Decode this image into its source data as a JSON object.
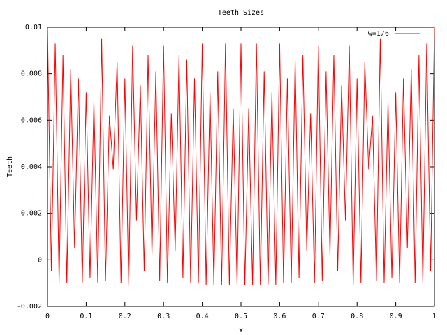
{
  "chart_data": {
    "type": "line",
    "title": "Teeth Sizes",
    "x_label": "x",
    "y_label": "Teeth",
    "x": [
      0,
      0.01,
      0.02,
      0.03,
      0.04,
      0.05,
      0.06,
      0.07,
      0.08,
      0.09,
      0.1,
      0.11,
      0.12,
      0.13,
      0.14,
      0.15,
      0.16,
      0.17,
      0.18,
      0.19,
      0.2,
      0.21,
      0.22,
      0.23,
      0.24,
      0.25,
      0.26,
      0.27,
      0.28,
      0.29,
      0.3,
      0.31,
      0.32,
      0.33,
      0.34,
      0.35,
      0.36,
      0.37,
      0.38,
      0.39,
      0.4,
      0.41,
      0.42,
      0.43,
      0.44,
      0.45,
      0.46,
      0.47,
      0.48,
      0.49,
      0.5,
      0.51,
      0.52,
      0.53,
      0.54,
      0.55,
      0.56,
      0.57,
      0.58,
      0.59,
      0.6,
      0.61,
      0.62,
      0.63,
      0.64,
      0.65,
      0.66,
      0.67,
      0.68,
      0.69,
      0.7,
      0.71,
      0.72,
      0.73,
      0.74,
      0.75,
      0.76,
      0.77,
      0.78,
      0.79,
      0.8,
      0.81,
      0.82,
      0.83,
      0.84,
      0.85,
      0.86,
      0.87,
      0.88,
      0.89,
      0.9,
      0.91,
      0.92,
      0.93,
      0.94,
      0.95,
      0.96,
      0.97,
      0.98,
      0.99,
      1
    ],
    "series": [
      {
        "name": "w=1/6",
        "color": "#ff0000",
        "values": [
          0.01,
          -0.0005,
          0.0093,
          -0.001,
          0.0088,
          -0.001,
          0.0082,
          0.0005,
          0.0078,
          -0.001,
          0.0072,
          -0.0008,
          0.0068,
          -0.001,
          0.0095,
          -0.0009,
          0.0062,
          0.0039,
          0.0085,
          -0.001,
          0.0078,
          -0.0011,
          0.0092,
          0.0017,
          0.0075,
          -0.0005,
          0.0088,
          0.0002,
          0.0081,
          -0.0009,
          0.0092,
          -0.001,
          0.0063,
          0.0004,
          0.0088,
          -0.0008,
          0.0086,
          -0.001,
          0.0078,
          -0.001,
          0.0093,
          -0.0011,
          0.0072,
          -0.0011,
          0.0081,
          -0.0011,
          0.0093,
          -0.0011,
          0.0065,
          -0.0011,
          0.0093,
          -0.0011,
          0.0065,
          -0.0011,
          0.0093,
          -0.0011,
          0.0081,
          -0.0011,
          0.0072,
          -0.0011,
          0.0093,
          -0.001,
          0.0078,
          -0.001,
          0.0086,
          -0.0008,
          0.0088,
          0.0004,
          0.0063,
          -0.001,
          0.0092,
          -0.0009,
          0.0081,
          0.0002,
          0.0088,
          -0.0005,
          0.0075,
          0.0017,
          0.0092,
          -0.0011,
          0.0078,
          -0.001,
          0.0085,
          0.0039,
          0.0062,
          -0.0009,
          0.0095,
          -0.001,
          0.0068,
          -0.0008,
          0.0072,
          -0.001,
          0.0078,
          0.0005,
          0.0082,
          -0.001,
          0.0088,
          -0.001,
          0.0093,
          -0.0005,
          0.01
        ]
      }
    ],
    "xlim": [
      0,
      1
    ],
    "ylim": [
      -0.002,
      0.01
    ],
    "xticks": [
      0,
      0.1,
      0.2,
      0.3,
      0.4,
      0.5,
      0.6,
      0.7,
      0.8,
      0.9,
      1
    ],
    "yticks": [
      -0.002,
      0,
      0.002,
      0.004,
      0.006,
      0.008,
      0.01
    ],
    "legend": "top-right"
  }
}
